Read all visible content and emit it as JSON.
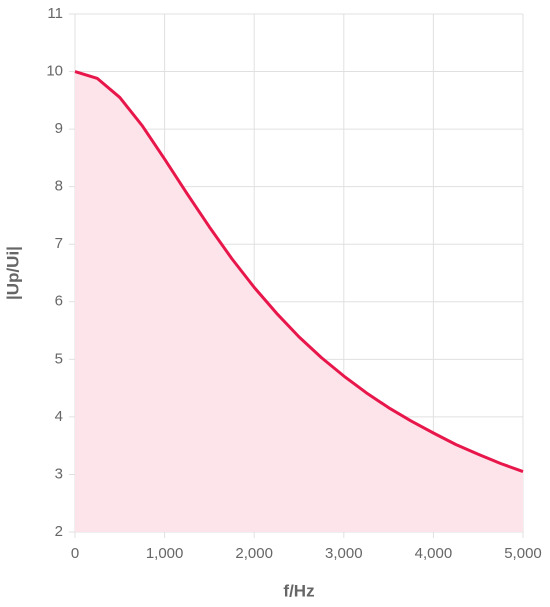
{
  "chart_data": {
    "type": "area",
    "xlabel": "f/Hz",
    "ylabel": "|Up/Ui|",
    "x": [
      0,
      250,
      500,
      750,
      1000,
      1250,
      1500,
      1750,
      2000,
      2250,
      2500,
      2750,
      3000,
      3250,
      3500,
      3750,
      4000,
      4250,
      4500,
      4750,
      5000
    ],
    "series": [
      {
        "color": "#e8174b",
        "fill": "#fde4ea",
        "values": [
          10,
          9.88,
          9.55,
          9.06,
          8.48,
          7.88,
          7.3,
          6.75,
          6.25,
          5.8,
          5.39,
          5.03,
          4.71,
          4.42,
          4.16,
          3.93,
          3.72,
          3.52,
          3.35,
          3.19,
          3.05
        ]
      }
    ],
    "xlim": [
      0,
      5000
    ],
    "ylim": [
      2,
      11
    ],
    "xticks": [
      0,
      {
        "value": 1000,
        "label": "1,000"
      },
      {
        "value": 2000,
        "label": "2,000"
      },
      {
        "value": 3000,
        "label": "3,000"
      },
      {
        "value": 4000,
        "label": "4,000"
      },
      {
        "value": 5000,
        "label": "5,000"
      }
    ],
    "yticks": [
      2,
      3,
      4,
      5,
      6,
      7,
      8,
      9,
      10,
      11
    ],
    "grid": true
  }
}
